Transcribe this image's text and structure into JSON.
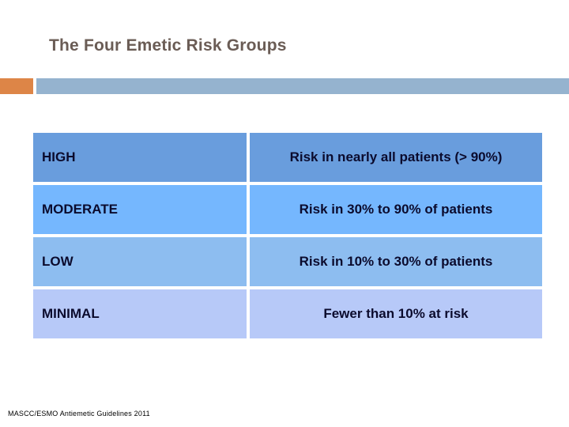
{
  "slide": {
    "title": "The Four Emetic Risk Groups",
    "footer": "MASCC/ESMO Antiemetic Guidelines 2011",
    "colors": {
      "accent_orange": "#DD8547",
      "accent_bar_blue": "#95B3CF",
      "title_text": "#6A5C55",
      "table_text": "#0B0B2D",
      "footer_text": "#000000",
      "row_bgs": [
        "#699DDD",
        "#75B7FE",
        "#8DBDF0",
        "#B7C9F8"
      ]
    },
    "table": {
      "rows": [
        {
          "label": "HIGH",
          "description": "Risk in nearly all patients (> 90%)"
        },
        {
          "label": "MODERATE",
          "description": "Risk in 30% to 90% of patients"
        },
        {
          "label": "LOW",
          "description": "Risk in 10% to 30% of patients"
        },
        {
          "label": "MINIMAL",
          "description": "Fewer than 10% at risk"
        }
      ]
    }
  }
}
